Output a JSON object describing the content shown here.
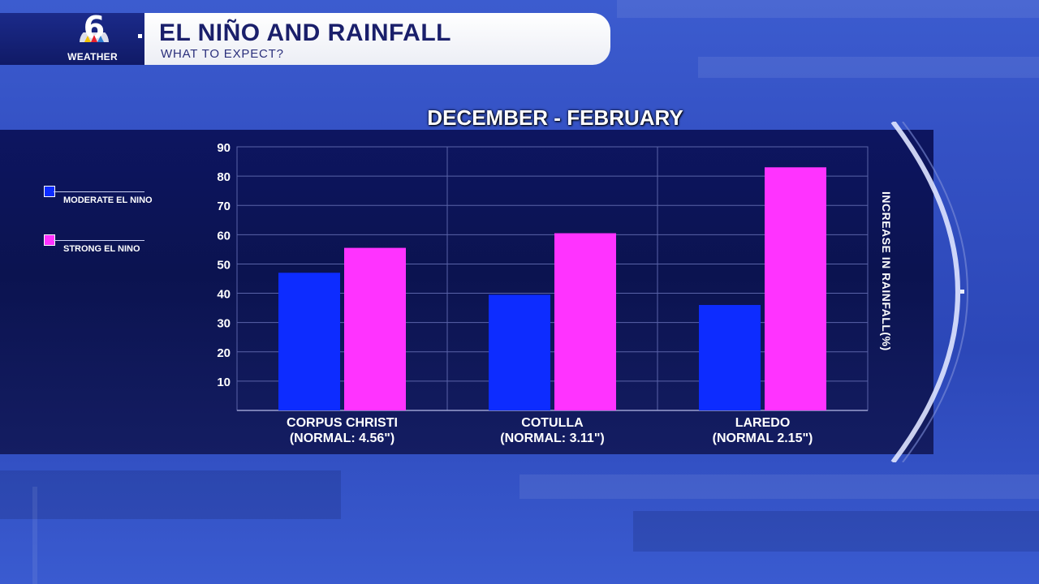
{
  "header": {
    "logo_number": "6",
    "logo_text": "WEATHER",
    "title": "EL NIÑO AND RAINFALL",
    "subtitle": "WHAT TO EXPECT?"
  },
  "legend": [
    {
      "label": "MODERATE EL NINO",
      "color": "#0d2cff"
    },
    {
      "label": "STRONG EL NINO",
      "color": "#ff33ff"
    }
  ],
  "chart_data": {
    "type": "bar",
    "title": "DECEMBER - FEBRUARY",
    "ylabel": "INCREASE IN RAINFALL(%)",
    "categories": [
      [
        "CORPUS CHRISTI",
        "(NORMAL: 4.56\")"
      ],
      [
        "COTULLA",
        "(NORMAL: 3.11\")"
      ],
      [
        "LAREDO",
        "(NORMAL 2.15\")"
      ]
    ],
    "series": [
      {
        "name": "MODERATE EL NINO",
        "color": "#0d2cff",
        "values": [
          47,
          39.5,
          36
        ]
      },
      {
        "name": "STRONG EL NINO",
        "color": "#ff33ff",
        "values": [
          55.5,
          60.5,
          83
        ]
      }
    ],
    "ylim": [
      0,
      90
    ],
    "yticks": [
      10,
      20,
      30,
      40,
      50,
      60,
      70,
      80,
      90
    ],
    "grid": true,
    "legend_position": "left"
  }
}
